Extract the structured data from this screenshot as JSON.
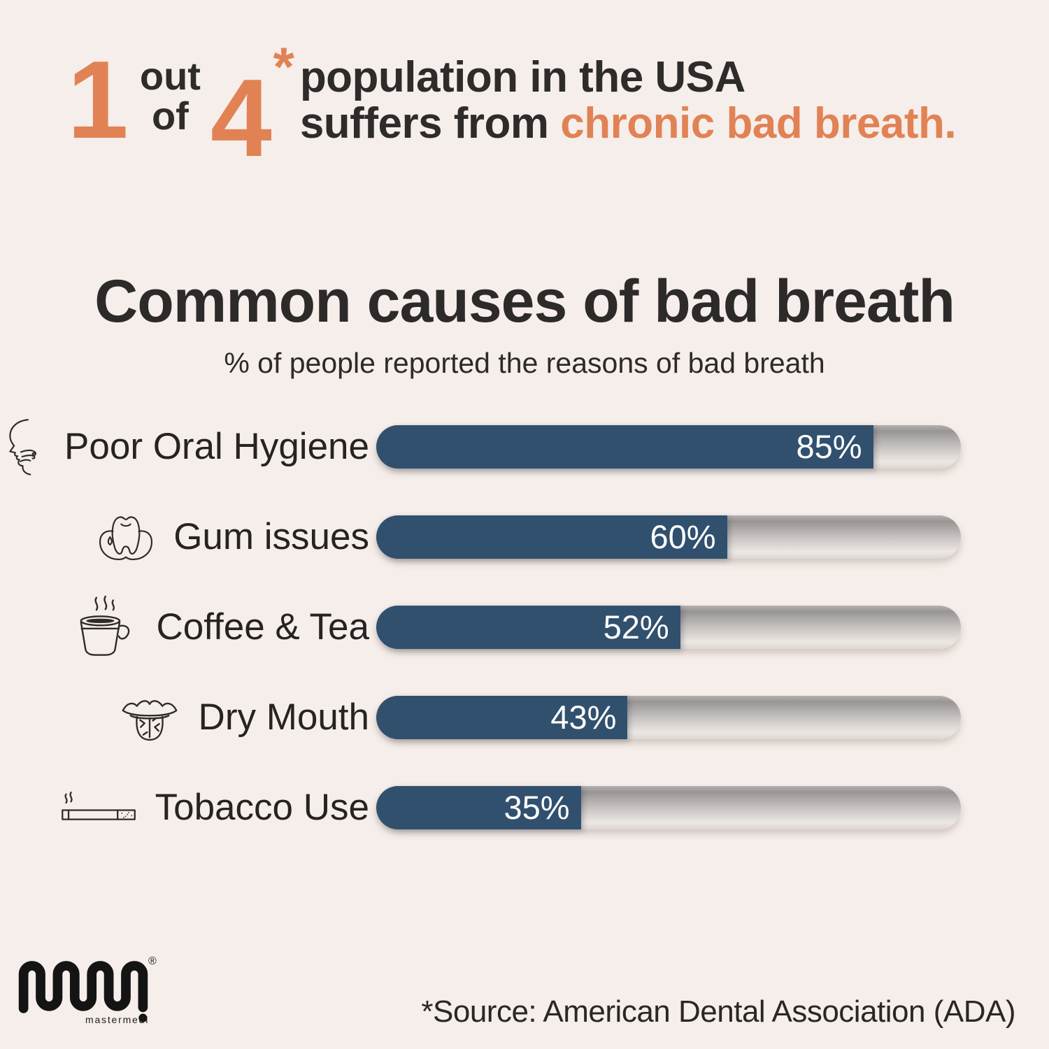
{
  "page": {
    "background": "#f6eeea",
    "accent_orange": "#e18255",
    "text_dark": "#2e2b2b"
  },
  "header": {
    "numerator": "1",
    "out": "out",
    "of": "of",
    "denominator": "4",
    "asterisk": "*",
    "line1": "population in the USA",
    "line2_prefix": "suffers from ",
    "line2_highlight": "chronic bad breath."
  },
  "chart_data": {
    "type": "bar",
    "orientation": "horizontal",
    "title": "Common causes of bad breath",
    "subtitle": "% of people reported the reasons of bad breath",
    "categories": [
      "Poor Oral Hygiene",
      "Gum issues",
      "Coffee & Tea",
      "Dry Mouth",
      "Tobacco Use"
    ],
    "values": [
      85,
      60,
      52,
      43,
      35
    ],
    "value_labels": [
      "85%",
      "60%",
      "52%",
      "43%",
      "35%"
    ],
    "icons": [
      "bad-breath-face-icon",
      "tooth-gum-icon",
      "coffee-cup-icon",
      "dry-mouth-tongue-icon",
      "cigarette-icon"
    ],
    "xlim": [
      0,
      100
    ],
    "bar_color": "#31506e",
    "track_gradient": [
      "#999595",
      "#ece7e3"
    ],
    "value_text_color": "#ffffff",
    "grid": false,
    "legend": false
  },
  "footer": {
    "logo_text": "mastermedi",
    "registered": "®",
    "source": "*Source: American Dental Association (ADA)"
  }
}
